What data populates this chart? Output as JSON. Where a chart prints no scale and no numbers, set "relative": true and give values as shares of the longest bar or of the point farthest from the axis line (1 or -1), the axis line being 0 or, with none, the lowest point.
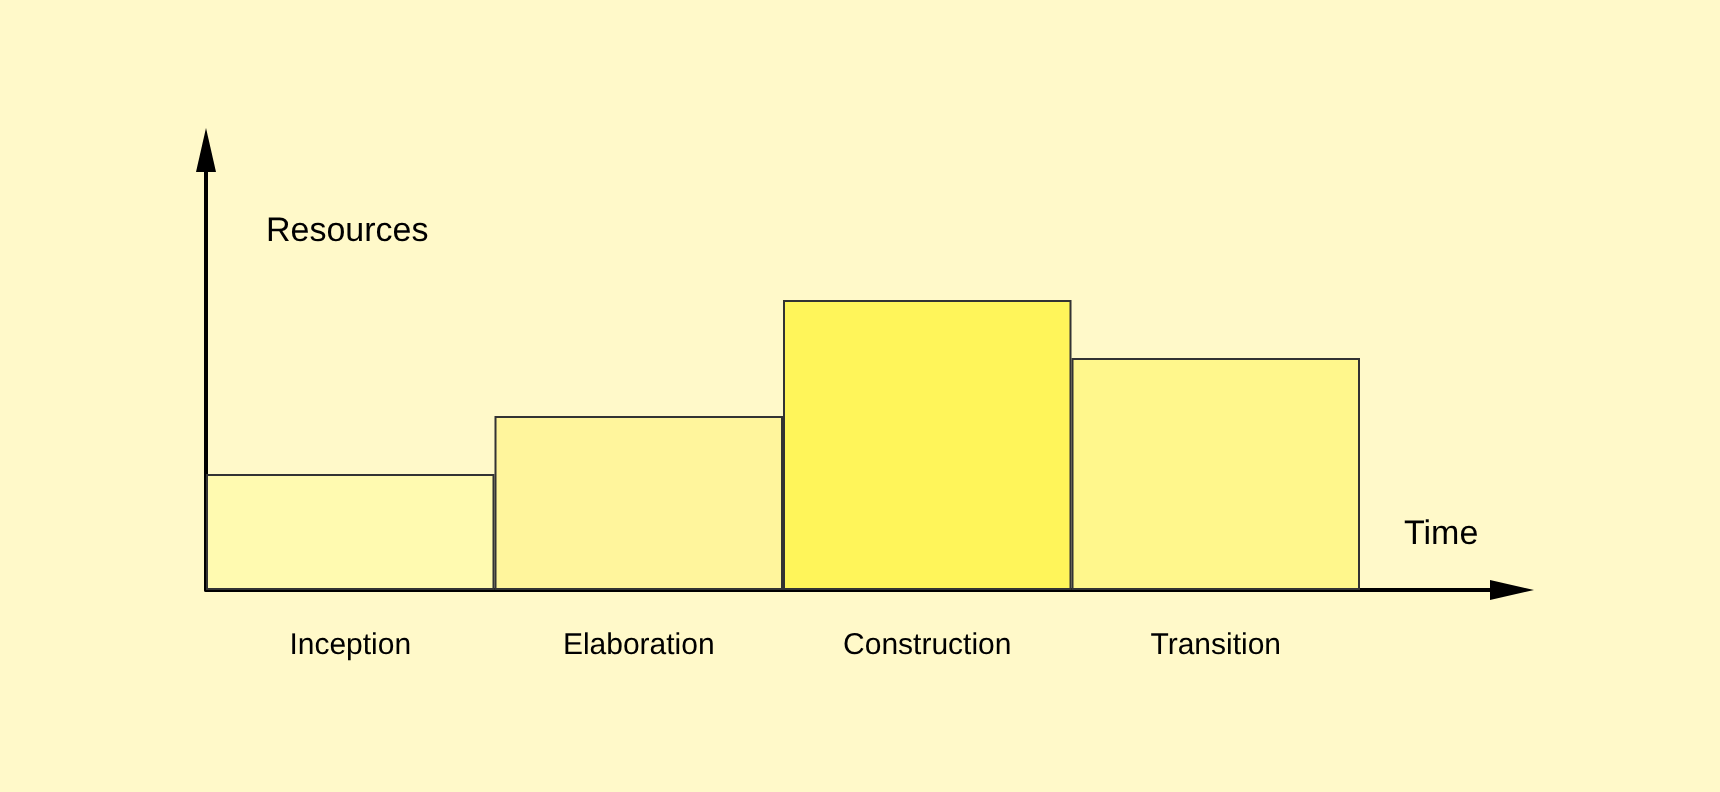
{
  "chart_data": {
    "type": "bar",
    "relative": true,
    "categories": [
      "Inception",
      "Elaboration",
      "Construction",
      "Transition"
    ],
    "values": [
      0.4,
      0.6,
      1,
      0.8
    ],
    "colors": [
      "#fffab0",
      "#fff59c",
      "#fff55a",
      "#fff78c"
    ],
    "xlabel": "Time",
    "ylabel": "Resources",
    "grid": false
  }
}
